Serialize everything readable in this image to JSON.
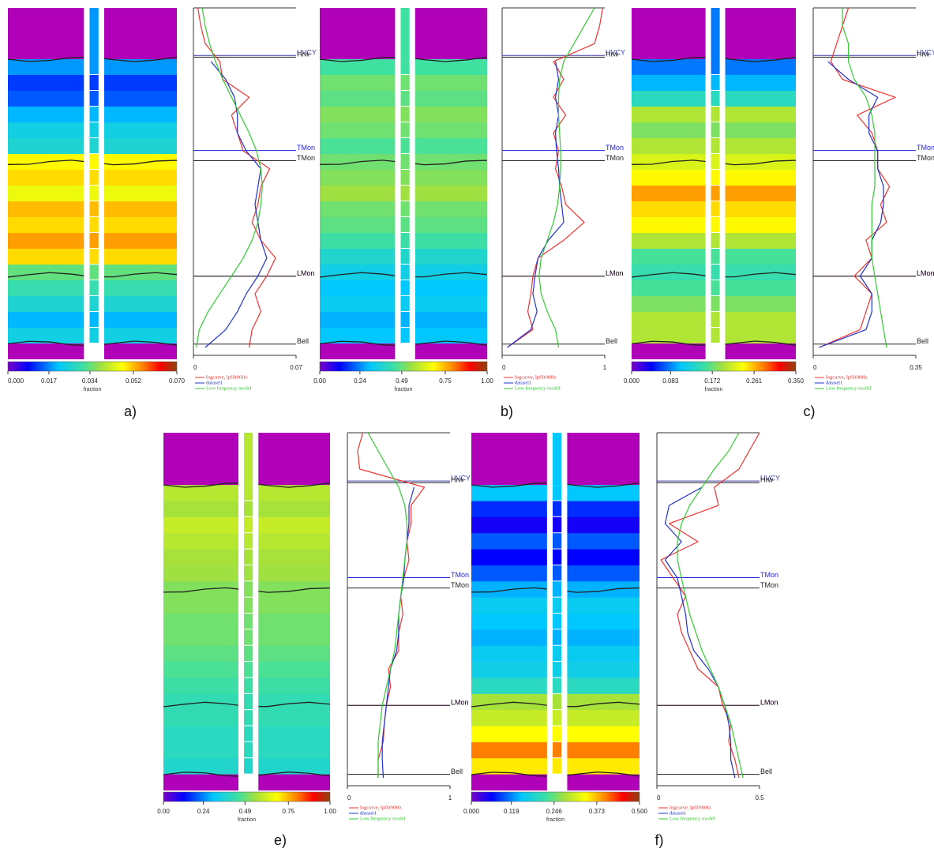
{
  "chart_data": [
    {
      "type": "heatmap",
      "label": "a)",
      "colormap": "jet",
      "clim": [
        0,
        0.07
      ],
      "colorbar": {
        "title": "fraction",
        "ticks": [
          {
            "value": 0,
            "label": "0.000"
          },
          0.017,
          0.034,
          0.052,
          {
            "value": 0.07,
            "label": "0.070"
          }
        ]
      },
      "values": [
        0.018,
        0.012,
        0.014,
        0.02,
        0.024,
        0.026,
        0.048,
        0.05,
        0.046,
        0.052,
        0.05,
        0.054,
        0.05,
        0.034,
        0.03,
        0.026,
        0.02,
        0.024
      ],
      "log": {
        "type": "line",
        "xlim": [
          0,
          0.07
        ],
        "xticks": [
          0,
          0.07
        ],
        "horizons": [
          {
            "name": "HVCY",
            "color": "#3a3aa8"
          },
          {
            "name": "Hrw",
            "color": "#222222"
          },
          {
            "name": "TMon",
            "color": "#2222dd"
          },
          {
            "name": "TMon",
            "color": "#222222"
          },
          {
            "name": "LMon",
            "color": "#993399"
          },
          {
            "name": "LMon",
            "color": "#222222"
          },
          {
            "name": "Bell",
            "color": "#222222"
          }
        ],
        "series": [
          {
            "name": "logcurve, lpfilt90Hz",
            "color": "#ee3333",
            "values": [
              0.003,
              0.005,
              0.008,
              0.018,
              0.02,
              0.038,
              0.026,
              0.03,
              0.034,
              0.052,
              0.046,
              0.044,
              0.04,
              0.046,
              0.056,
              0.05,
              0.042,
              0.046,
              0.04,
              0.038
            ]
          },
          {
            "name": "dataset1",
            "color": "#2233cc",
            "values": [
              null,
              null,
              null,
              0.012,
              0.022,
              0.028,
              0.03,
              0.03,
              0.036,
              0.046,
              0.044,
              0.042,
              0.044,
              0.046,
              0.05,
              0.044,
              0.036,
              0.03,
              0.022,
              0.008
            ]
          },
          {
            "name": "Low frequency model",
            "color": "#33cc33",
            "values": [
              0.006,
              0.008,
              0.011,
              0.015,
              0.02,
              0.026,
              0.032,
              0.038,
              0.043,
              0.046,
              0.047,
              0.046,
              0.044,
              0.04,
              0.034,
              0.026,
              0.018,
              0.01,
              0.004,
              0.002
            ]
          }
        ]
      }
    },
    {
      "type": "heatmap",
      "label": "b)",
      "colormap": "jet",
      "clim": [
        0,
        1
      ],
      "colorbar": {
        "title": "fraction",
        "ticks": [
          {
            "value": 0,
            "label": "0.00"
          },
          0.24,
          0.49,
          0.75,
          {
            "value": 1,
            "label": "1.00"
          }
        ]
      },
      "values": [
        0.45,
        0.5,
        0.48,
        0.52,
        0.5,
        0.46,
        0.5,
        0.52,
        0.55,
        0.5,
        0.48,
        0.44,
        0.38,
        0.34,
        0.3,
        0.32,
        0.28,
        0.3
      ],
      "log": {
        "type": "line",
        "xlim": [
          0,
          1
        ],
        "xticks": [
          0,
          1
        ],
        "horizons": [
          {
            "name": "HVCY",
            "color": "#3a3aa8"
          },
          {
            "name": "Hrw",
            "color": "#222222"
          },
          {
            "name": "TMon",
            "color": "#2222dd"
          },
          {
            "name": "TMon",
            "color": "#222222"
          },
          {
            "name": "LMon",
            "color": "#993399"
          },
          {
            "name": "LMon",
            "color": "#222222"
          },
          {
            "name": "Bell",
            "color": "#222222"
          }
        ],
        "series": [
          {
            "name": "logcurve, lpfilt90Hz",
            "color": "#ee3333",
            "values": [
              0.98,
              0.95,
              0.9,
              0.5,
              0.6,
              0.5,
              0.62,
              0.5,
              0.55,
              0.52,
              0.58,
              0.62,
              0.8,
              0.6,
              0.35,
              0.3,
              0.28,
              0.25,
              0.3,
              0.05
            ]
          },
          {
            "name": "dataset1",
            "color": "#2233cc",
            "values": [
              null,
              null,
              null,
              0.52,
              0.55,
              0.52,
              0.55,
              0.52,
              0.53,
              0.55,
              0.56,
              0.58,
              0.6,
              0.45,
              0.35,
              0.32,
              0.3,
              0.34,
              0.28,
              0.05
            ]
          },
          {
            "name": "Low frequency model",
            "color": "#33cc33",
            "values": [
              0.9,
              0.8,
              0.7,
              0.6,
              0.56,
              0.55,
              0.55,
              0.56,
              0.57,
              0.57,
              0.56,
              0.54,
              0.5,
              0.44,
              0.38,
              0.36,
              0.38,
              0.44,
              0.52,
              0.55
            ]
          }
        ]
      }
    },
    {
      "type": "heatmap",
      "label": "c)",
      "colormap": "jet",
      "clim": [
        0,
        0.35
      ],
      "colorbar": {
        "title": "fraction",
        "ticks": [
          {
            "value": 0,
            "label": "0.000"
          },
          0.083,
          0.172,
          0.261,
          {
            "value": 0.35,
            "label": "0.350"
          }
        ]
      },
      "values": [
        0.08,
        0.1,
        0.14,
        0.2,
        0.18,
        0.2,
        0.22,
        0.24,
        0.27,
        0.25,
        0.24,
        0.2,
        0.16,
        0.15,
        0.16,
        0.18,
        0.2,
        0.2
      ],
      "log": {
        "type": "line",
        "xlim": [
          0,
          0.35
        ],
        "xticks": [
          0,
          0.35
        ],
        "horizons": [
          {
            "name": "HVCY",
            "color": "#3a3aa8"
          },
          {
            "name": "Hrw",
            "color": "#222222"
          },
          {
            "name": "TMon",
            "color": "#2222dd"
          },
          {
            "name": "TMon",
            "color": "#222222"
          },
          {
            "name": "LMon",
            "color": "#993399"
          },
          {
            "name": "LMon",
            "color": "#222222"
          },
          {
            "name": "Bell",
            "color": "#222222"
          }
        ],
        "series": [
          {
            "name": "logcurve, lpfilt90Hz",
            "color": "#ee3333",
            "values": [
              0.12,
              0.1,
              0.08,
              0.06,
              0.1,
              0.28,
              0.15,
              0.2,
              0.22,
              0.22,
              0.26,
              0.23,
              0.25,
              0.18,
              0.2,
              0.14,
              0.2,
              0.18,
              0.16,
              0.02
            ]
          },
          {
            "name": "dataset1",
            "color": "#2233cc",
            "values": [
              null,
              null,
              null,
              0.05,
              0.12,
              0.22,
              0.19,
              0.19,
              0.22,
              0.22,
              0.24,
              0.24,
              0.23,
              0.2,
              0.2,
              0.16,
              0.2,
              0.2,
              0.18,
              0.02
            ]
          },
          {
            "name": "Low frequency model",
            "color": "#33cc33",
            "values": [
              0.1,
              0.1,
              0.12,
              0.12,
              0.14,
              0.18,
              0.2,
              0.21,
              0.21,
              0.21,
              0.21,
              0.2,
              0.2,
              0.2,
              0.2,
              0.21,
              0.22,
              0.23,
              0.24,
              0.25
            ]
          }
        ]
      }
    },
    {
      "type": "heatmap",
      "label": "e)",
      "colormap": "jet",
      "clim": [
        0,
        1
      ],
      "colorbar": {
        "title": "fraction",
        "ticks": [
          {
            "value": 0,
            "label": "0.00"
          },
          0.24,
          0.49,
          0.75,
          {
            "value": 1,
            "label": "1.00"
          }
        ]
      },
      "values": [
        0.58,
        0.56,
        0.6,
        0.58,
        0.56,
        0.55,
        0.52,
        0.52,
        0.5,
        0.5,
        0.48,
        0.46,
        0.44,
        0.42,
        0.42,
        0.4,
        0.4,
        0.38
      ],
      "log": {
        "type": "line",
        "xlim": [
          0,
          1
        ],
        "xticks": [
          0,
          1
        ],
        "horizons": [
          {
            "name": "HVCY",
            "color": "#3a3aa8"
          },
          {
            "name": "Hrw",
            "color": "#222222"
          },
          {
            "name": "TMon",
            "color": "#2222dd"
          },
          {
            "name": "TMon",
            "color": "#222222"
          },
          {
            "name": "LMon",
            "color": "#993399"
          },
          {
            "name": "LMon",
            "color": "#222222"
          },
          {
            "name": "Bell",
            "color": "#222222"
          }
        ],
        "series": [
          {
            "name": "logcurve, lpfilt90Hz",
            "color": "#ee3333",
            "values": [
              0.15,
              0.1,
              0.12,
              0.75,
              0.62,
              0.62,
              0.58,
              0.6,
              0.55,
              0.52,
              0.54,
              0.5,
              0.5,
              0.4,
              0.42,
              0.38,
              0.36,
              0.35,
              0.3,
              0.3
            ]
          },
          {
            "name": "dataset1",
            "color": "#2233cc",
            "values": [
              null,
              null,
              null,
              0.65,
              0.6,
              0.6,
              0.58,
              0.56,
              0.55,
              0.52,
              0.5,
              0.5,
              0.48,
              0.42,
              0.4,
              0.38,
              0.36,
              0.34,
              0.34,
              0.35
            ]
          },
          {
            "name": "Low frequency model",
            "color": "#33cc33",
            "values": [
              0.2,
              0.3,
              0.4,
              0.5,
              0.56,
              0.58,
              0.58,
              0.56,
              0.54,
              0.52,
              0.5,
              0.48,
              0.46,
              0.42,
              0.38,
              0.34,
              0.32,
              0.3,
              0.3,
              0.3
            ]
          }
        ]
      }
    },
    {
      "type": "heatmap",
      "label": "f)",
      "colormap": "jet",
      "clim": [
        0,
        0.5
      ],
      "colorbar": {
        "title": "fraction",
        "ticks": [
          {
            "value": 0,
            "label": "0.000"
          },
          0.119,
          0.246,
          0.373,
          {
            "value": 0.5,
            "label": "0.500"
          }
        ]
      },
      "values": [
        0.15,
        0.08,
        0.05,
        0.1,
        0.06,
        0.1,
        0.14,
        0.16,
        0.15,
        0.14,
        0.16,
        0.17,
        0.2,
        0.28,
        0.3,
        0.34,
        0.4,
        0.35
      ],
      "log": {
        "type": "line",
        "xlim": [
          0,
          0.5
        ],
        "xticks": [
          0,
          0.5
        ],
        "horizons": [
          {
            "name": "HVCY",
            "color": "#3a3aa8"
          },
          {
            "name": "Hrw",
            "color": "#222222"
          },
          {
            "name": "TMon",
            "color": "#2222dd"
          },
          {
            "name": "TMon",
            "color": "#222222"
          },
          {
            "name": "LMon",
            "color": "#993399"
          },
          {
            "name": "LMon",
            "color": "#222222"
          },
          {
            "name": "Bell",
            "color": "#222222"
          }
        ],
        "series": [
          {
            "name": "logcurve, lpfilt90Hz",
            "color": "#ee3333",
            "values": [
              0.5,
              0.45,
              0.4,
              0.28,
              0.3,
              0.06,
              0.2,
              0.02,
              0.08,
              0.14,
              0.1,
              0.12,
              0.16,
              0.2,
              0.3,
              0.32,
              0.36,
              0.35,
              0.38,
              0.4
            ]
          },
          {
            "name": "dataset1",
            "color": "#2233cc",
            "values": [
              null,
              null,
              null,
              0.22,
              0.06,
              0.04,
              0.12,
              0.04,
              0.1,
              0.12,
              0.14,
              0.15,
              0.18,
              0.25,
              0.3,
              0.33,
              0.35,
              0.36,
              0.36,
              0.38
            ]
          },
          {
            "name": "Low frequency model",
            "color": "#33cc33",
            "values": [
              0.4,
              0.35,
              0.28,
              0.22,
              0.16,
              0.12,
              0.1,
              0.1,
              0.12,
              0.14,
              0.16,
              0.19,
              0.22,
              0.26,
              0.3,
              0.33,
              0.36,
              0.38,
              0.4,
              0.42
            ]
          }
        ]
      }
    }
  ]
}
